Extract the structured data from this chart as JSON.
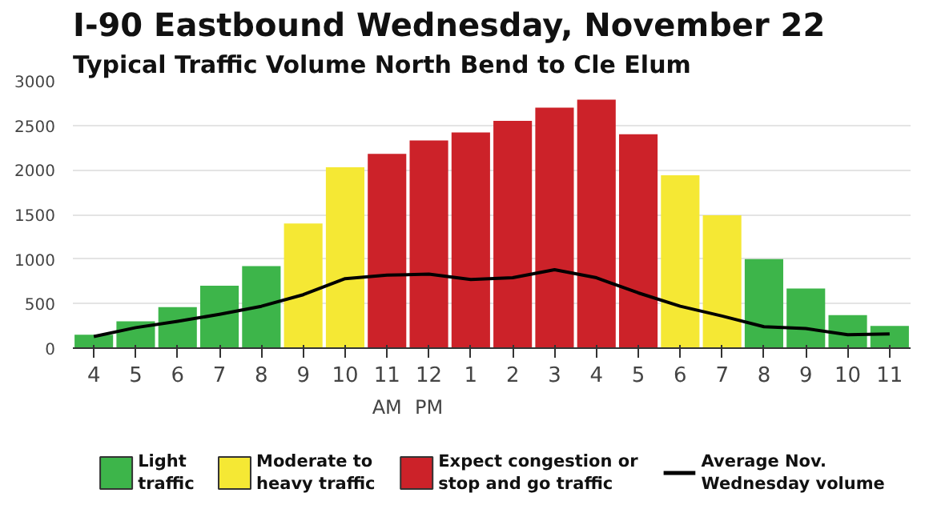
{
  "chart_data": {
    "type": "bar",
    "title": "I-90 Eastbound Wednesday, November 22",
    "subtitle": "Typical Traffic Volume North Bend to Cle Elum",
    "categories": [
      "4",
      "5",
      "6",
      "7",
      "8",
      "9",
      "10",
      "11",
      "12",
      "1",
      "2",
      "3",
      "4",
      "5",
      "6",
      "7",
      "8",
      "9",
      "10",
      "11"
    ],
    "series": [
      {
        "name": "Light traffic",
        "color": "#3db54a",
        "values": [
          150,
          300,
          460,
          700,
          920,
          null,
          null,
          null,
          null,
          null,
          null,
          null,
          null,
          null,
          null,
          null,
          1000,
          670,
          370,
          250
        ]
      },
      {
        "name": "Moderate to heavy traffic",
        "color": "#f5e834",
        "values": [
          null,
          null,
          null,
          null,
          null,
          1400,
          2030,
          null,
          null,
          null,
          null,
          null,
          null,
          null,
          1940,
          1490,
          null,
          null,
          null,
          null
        ]
      },
      {
        "name": "Expect congestion or stop and go traffic",
        "color": "#cc2229",
        "values": [
          null,
          null,
          null,
          null,
          null,
          null,
          null,
          2180,
          2330,
          2420,
          2550,
          2700,
          2790,
          2400,
          null,
          null,
          null,
          null,
          null,
          null
        ]
      },
      {
        "name": "Average Nov. Wednesday volume",
        "type": "line",
        "color": "#000000",
        "values": [
          130,
          230,
          300,
          380,
          470,
          600,
          780,
          820,
          830,
          770,
          790,
          880,
          790,
          620,
          470,
          360,
          240,
          220,
          150,
          160
        ]
      }
    ],
    "ylim": [
      0,
      3000
    ],
    "yticks": [
      0,
      500,
      1000,
      1500,
      2000,
      2500,
      3000
    ],
    "grid": "y",
    "legend": "bottom",
    "annotations": [
      "AM",
      "PM"
    ]
  }
}
